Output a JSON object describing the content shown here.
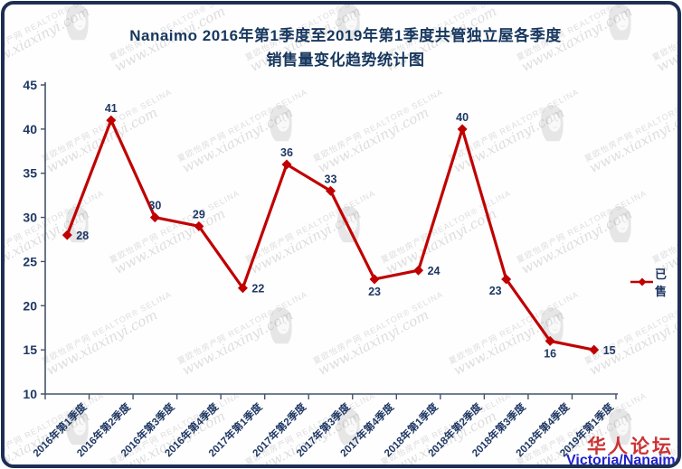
{
  "frame": {
    "border_color": "#1e2f54",
    "background": "#fefefe"
  },
  "title": {
    "line1": "Nanaimo 2016年第1季度至2019年第1季度共管独立屋各季度",
    "line2": "销售量变化趋势统计图",
    "color": "#17375e"
  },
  "watermark": {
    "site_name": "夏欧怡房产网",
    "realtor": "REALTOR® SELINA",
    "url": "www.xiaxinyi.com",
    "logo": "woman-face-silhouette"
  },
  "legend": {
    "label": "已售"
  },
  "footer": {
    "forum": "华人论坛",
    "forum_color": "#cc3333",
    "location": "Victoria/Nanaimo",
    "location_color": "#2222cc"
  },
  "chart_data": {
    "type": "line",
    "title": "Nanaimo 2016年第1季度至2019年第1季度共管独立屋各季度销售量变化趋势统计图",
    "series_name": "已售",
    "categories": [
      "2016年第1季度",
      "2016年第2季度",
      "2016年第3季度",
      "2016年第4季度",
      "2017年第1季度",
      "2017年第2季度",
      "2017年第3季度",
      "2017年第4季度",
      "2018年第1季度",
      "2018年第2季度",
      "2018年第3季度",
      "2018年第4季度",
      "2019年第1季度"
    ],
    "values": [
      28,
      41,
      30,
      29,
      22,
      36,
      33,
      23,
      24,
      40,
      23,
      16,
      15
    ],
    "label_placement": [
      "right",
      "above",
      "above",
      "above",
      "right",
      "above",
      "above",
      "below",
      "right",
      "above",
      "below-left",
      "below",
      "right"
    ],
    "xlabel": "",
    "ylabel": "",
    "ylim": [
      10,
      45
    ],
    "ytick_step": 5,
    "grid": false,
    "legend_position": "right",
    "line_color": "#c00000",
    "marker": "diamond",
    "label_color": "#1f3864",
    "axis_color": "#44546a",
    "tick_label_color": "#1f3864"
  }
}
